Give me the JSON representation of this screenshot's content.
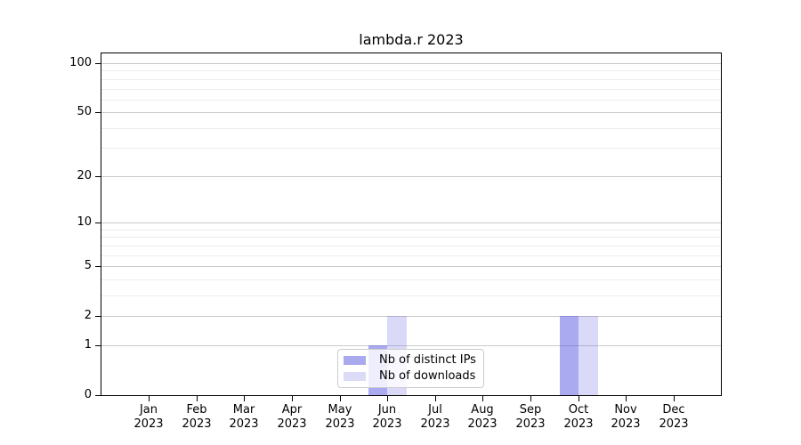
{
  "chart_data": {
    "type": "bar",
    "title": "lambda.r 2023",
    "categories": [
      "Jan",
      "Feb",
      "Mar",
      "Apr",
      "May",
      "Jun",
      "Jul",
      "Aug",
      "Sep",
      "Oct",
      "Nov",
      "Dec"
    ],
    "category_year": "2023",
    "series": [
      {
        "name": "Nb of distinct IPs",
        "swatch_color": "#a9a9ee",
        "bar_color": "rgba(85,85,225,0.5)",
        "values": [
          0,
          0,
          0,
          0,
          0,
          1,
          0,
          0,
          0,
          2,
          0,
          0
        ]
      },
      {
        "name": "Nb of downloads",
        "swatch_color": "#dbdbf7",
        "bar_color": "rgba(85,85,225,0.22)",
        "values": [
          0,
          0,
          0,
          0,
          0,
          2,
          0,
          0,
          0,
          2,
          0,
          0
        ]
      }
    ],
    "yticks": [
      0,
      1,
      2,
      5,
      10,
      20,
      50,
      100
    ],
    "yticks_minor": [
      3,
      4,
      6,
      7,
      8,
      9,
      30,
      40,
      60,
      70,
      80,
      90
    ],
    "scale": "log1p",
    "ylim": [
      0,
      114.8
    ],
    "grid": "on",
    "legend_position": "lower center",
    "xlabel": "",
    "ylabel": ""
  },
  "colors": {
    "major_grid": "#c9c9c9",
    "minor_grid": "#ededed",
    "axis": "#000000",
    "legend_border": "#cccccc"
  }
}
